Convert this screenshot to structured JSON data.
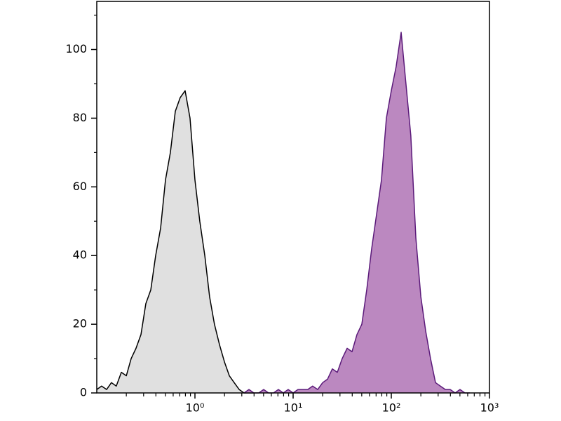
{
  "chart_data": {
    "type": "area",
    "xlog": true,
    "xlim": [
      0.1,
      1000
    ],
    "ylim": [
      0,
      114
    ],
    "xticks": [
      {
        "value": 1,
        "label": "10⁰"
      },
      {
        "value": 10,
        "label": "10¹"
      },
      {
        "value": 100,
        "label": "10²"
      },
      {
        "value": 1000,
        "label": "10³"
      }
    ],
    "xminor": [
      0.2,
      0.3,
      0.4,
      0.5,
      0.6,
      0.7,
      0.8,
      0.9,
      2,
      3,
      4,
      5,
      6,
      7,
      8,
      9,
      20,
      30,
      40,
      50,
      60,
      70,
      80,
      90,
      200,
      300,
      400,
      500,
      600,
      700,
      800,
      900
    ],
    "yticks": [
      0,
      20,
      40,
      60,
      80,
      100
    ],
    "yminor": [
      10,
      30,
      50,
      70,
      90,
      110
    ],
    "series": [
      {
        "color": "#000000",
        "fill": "#e0e0e0",
        "x": [
          0.1,
          0.112,
          0.126,
          0.141,
          0.158,
          0.178,
          0.2,
          0.224,
          0.251,
          0.282,
          0.316,
          0.355,
          0.398,
          0.447,
          0.501,
          0.562,
          0.631,
          0.708,
          0.794,
          0.891,
          1,
          1.12,
          1.26,
          1.41,
          1.58,
          1.78,
          2,
          2.24,
          2.51,
          2.82,
          3.16,
          3.55,
          3.98
        ],
        "values": [
          1,
          2,
          1,
          3,
          2,
          6,
          5,
          10,
          13,
          17,
          26,
          30,
          40,
          48,
          62,
          70,
          82,
          86,
          88,
          80,
          62,
          50,
          40,
          28,
          20,
          14,
          9,
          5,
          3,
          1,
          0,
          0,
          0
        ]
      },
      {
        "color": "#5b1a7a",
        "fill": "#bb88c0",
        "x": [
          3.16,
          3.55,
          3.98,
          4.47,
          5.01,
          5.62,
          6.31,
          7.08,
          7.94,
          8.91,
          10,
          11.2,
          12.6,
          14.1,
          15.8,
          17.8,
          20,
          22.4,
          25.1,
          28.2,
          31.6,
          35.5,
          39.8,
          44.7,
          50.1,
          56.2,
          63.1,
          70.8,
          79.4,
          89.1,
          100,
          112,
          126,
          141,
          158,
          178,
          200,
          224,
          251,
          282,
          316,
          355,
          398,
          447,
          501,
          562,
          631
        ],
        "values": [
          0,
          1,
          0,
          0,
          1,
          0,
          0,
          1,
          0,
          1,
          0,
          1,
          1,
          1,
          2,
          1,
          3,
          4,
          7,
          6,
          10,
          13,
          12,
          17,
          20,
          30,
          42,
          52,
          62,
          80,
          88,
          95,
          105,
          90,
          75,
          45,
          28,
          18,
          10,
          3,
          2,
          1,
          1,
          0,
          1,
          0,
          0
        ]
      }
    ]
  }
}
